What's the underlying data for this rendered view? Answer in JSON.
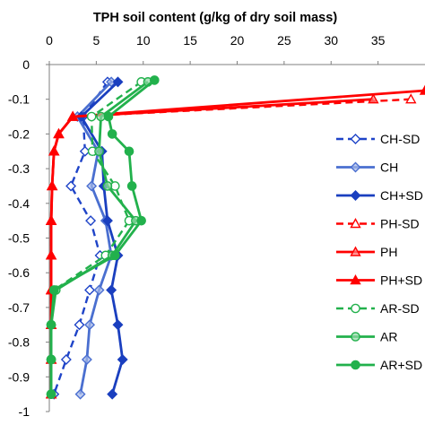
{
  "chart_data": {
    "type": "line",
    "title": "TPH  soil content (g/kg of dry soil mass)",
    "xlabel": "",
    "ylabel": "",
    "xlim": [
      0,
      40
    ],
    "ylim": [
      -1,
      0
    ],
    "x_ticks": [
      0,
      5,
      10,
      15,
      20,
      25,
      30,
      35
    ],
    "y_ticks": [
      0,
      -0.1,
      -0.2,
      -0.3,
      -0.4,
      -0.5,
      -0.6,
      -0.7,
      -0.8,
      -0.9,
      -1
    ],
    "x_tick_labels": [
      "0",
      "5",
      "10",
      "15",
      "20",
      "25",
      "30",
      "35"
    ],
    "y_tick_labels": [
      "0",
      "-0.1",
      "-0.2",
      "-0.3",
      "-0.4",
      "-0.5",
      "-0.6",
      "-0.7",
      "-0.8",
      "-0.9",
      "-1"
    ],
    "x_axis_position": "top",
    "grid": false,
    "legend_position": "right",
    "series": [
      {
        "name": "CH-SD",
        "color": "#1f44c8",
        "dash": "dashed",
        "marker": "diamond-open",
        "points": [
          [
            6.2,
            -0.05
          ],
          [
            3.6,
            -0.15
          ],
          [
            3.8,
            -0.25
          ],
          [
            2.3,
            -0.35
          ],
          [
            4.4,
            -0.45
          ],
          [
            5.4,
            -0.55
          ],
          [
            4.3,
            -0.65
          ],
          [
            3.2,
            -0.75
          ],
          [
            1.8,
            -0.85
          ],
          [
            0.5,
            -0.95
          ]
        ]
      },
      {
        "name": "CH",
        "color": "#4a6fd0",
        "dash": "solid",
        "marker": "diamond-light",
        "points": [
          [
            6.6,
            -0.05
          ],
          [
            3.0,
            -0.15
          ],
          [
            5.2,
            -0.25
          ],
          [
            4.5,
            -0.35
          ],
          [
            6.0,
            -0.45
          ],
          [
            6.6,
            -0.55
          ],
          [
            5.3,
            -0.65
          ],
          [
            4.3,
            -0.75
          ],
          [
            4.0,
            -0.85
          ],
          [
            3.3,
            -0.95
          ]
        ]
      },
      {
        "name": "CH+SD",
        "color": "#1a3fbf",
        "dash": "solid",
        "marker": "diamond-filled",
        "points": [
          [
            7.3,
            -0.05
          ],
          [
            3.4,
            -0.15
          ],
          [
            5.6,
            -0.25
          ],
          [
            5.8,
            -0.35
          ],
          [
            6.2,
            -0.45
          ],
          [
            7.3,
            -0.55
          ],
          [
            6.6,
            -0.65
          ],
          [
            7.3,
            -0.75
          ],
          [
            7.8,
            -0.85
          ],
          [
            6.7,
            -0.95
          ]
        ]
      },
      {
        "name": "PH-SD",
        "color": "#ff0000",
        "dash": "dashed",
        "marker": "triangle-open",
        "points": [
          [
            38.5,
            -0.1
          ],
          [
            2.5,
            -0.15
          ],
          [
            1.0,
            -0.2
          ],
          [
            0.5,
            -0.25
          ],
          [
            0.3,
            -0.35
          ],
          [
            0.2,
            -0.45
          ],
          [
            0.2,
            -0.55
          ],
          [
            0.2,
            -0.65
          ],
          [
            0.2,
            -0.75
          ],
          [
            0.2,
            -0.85
          ],
          [
            0.2,
            -0.95
          ]
        ]
      },
      {
        "name": "PH",
        "color": "#ff0000",
        "dash": "solid",
        "marker": "triangle-light",
        "points": [
          [
            34.5,
            -0.1
          ],
          [
            2.5,
            -0.15
          ],
          [
            1.0,
            -0.2
          ],
          [
            0.5,
            -0.25
          ],
          [
            0.3,
            -0.35
          ],
          [
            0.2,
            -0.45
          ],
          [
            0.2,
            -0.55
          ],
          [
            0.2,
            -0.65
          ],
          [
            0.2,
            -0.75
          ],
          [
            0.2,
            -0.85
          ],
          [
            0.2,
            -0.95
          ]
        ]
      },
      {
        "name": "PH+SD",
        "color": "#ff0000",
        "dash": "solid",
        "marker": "triangle-filled",
        "points": [
          [
            40.0,
            -0.075
          ],
          [
            2.5,
            -0.15
          ],
          [
            1.0,
            -0.2
          ],
          [
            0.5,
            -0.25
          ],
          [
            0.3,
            -0.35
          ],
          [
            0.2,
            -0.45
          ],
          [
            0.2,
            -0.55
          ],
          [
            0.2,
            -0.65
          ],
          [
            0.2,
            -0.75
          ],
          [
            0.2,
            -0.85
          ],
          [
            0.2,
            -0.95
          ]
        ]
      },
      {
        "name": "AR-SD",
        "color": "#22b14c",
        "dash": "dashed",
        "marker": "circle-open",
        "points": [
          [
            9.8,
            -0.05
          ],
          [
            4.5,
            -0.15
          ],
          [
            4.6,
            -0.25
          ],
          [
            7.0,
            -0.35
          ],
          [
            8.5,
            -0.45
          ],
          [
            6.0,
            -0.55
          ],
          [
            0.5,
            -0.65
          ],
          [
            0.2,
            -0.75
          ],
          [
            0.2,
            -0.85
          ],
          [
            0.2,
            -0.95
          ]
        ]
      },
      {
        "name": "AR",
        "color": "#22b14c",
        "dash": "solid",
        "marker": "circle-light",
        "points": [
          [
            10.5,
            -0.05
          ],
          [
            5.5,
            -0.15
          ],
          [
            5.3,
            -0.25
          ],
          [
            6.2,
            -0.35
          ],
          [
            9.2,
            -0.45
          ],
          [
            6.7,
            -0.55
          ],
          [
            0.7,
            -0.65
          ],
          [
            0.2,
            -0.75
          ],
          [
            0.2,
            -0.85
          ],
          [
            0.2,
            -0.95
          ]
        ]
      },
      {
        "name": "AR+SD",
        "color": "#22b14c",
        "dash": "solid",
        "marker": "circle-filled",
        "points": [
          [
            11.2,
            -0.045
          ],
          [
            6.3,
            -0.15
          ],
          [
            6.7,
            -0.2
          ],
          [
            8.5,
            -0.25
          ],
          [
            8.8,
            -0.35
          ],
          [
            9.8,
            -0.45
          ],
          [
            7.0,
            -0.55
          ],
          [
            0.5,
            -0.65
          ],
          [
            0.2,
            -0.75
          ],
          [
            0.2,
            -0.85
          ],
          [
            0.2,
            -0.95
          ]
        ]
      }
    ]
  }
}
